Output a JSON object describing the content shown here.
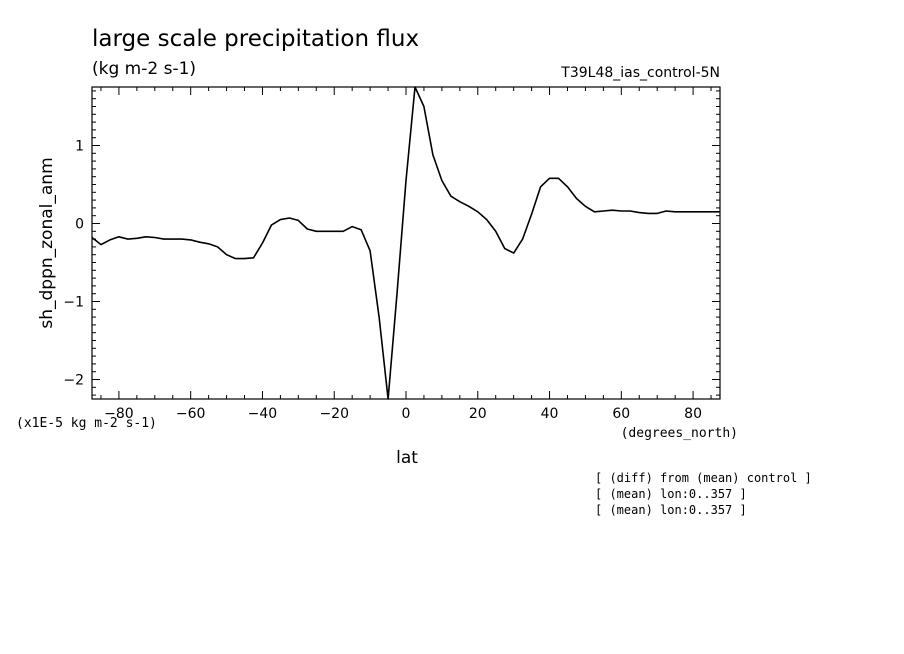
{
  "title": "large scale precipitation flux",
  "units": "(kg m-2 s-1)",
  "experiment": "T39L48_ias_control-5N",
  "notes": [
    "[ (diff) from (mean) control ]",
    "[ (mean) lon:0..357 ]",
    "[ (mean) lon:0..357 ]"
  ],
  "chart_data": {
    "type": "line",
    "title": "large scale precipitation flux",
    "xlabel": "lat",
    "xunits": "(degrees_north)",
    "ylabel": "sh_dppn_zonal_anm",
    "yscale_label": "(x1E-5 kg m-2 s-1)",
    "xlim": [
      -87.5,
      87.5
    ],
    "ylim": [
      -2.25,
      1.75
    ],
    "xticks": [
      -80,
      -60,
      -40,
      -20,
      0,
      20,
      40,
      60,
      80
    ],
    "yticks": [
      -2,
      -1,
      0,
      1
    ],
    "grid": false,
    "series": [
      {
        "x": [
          -87.5,
          -85,
          -82.5,
          -80,
          -77.5,
          -75,
          -72.5,
          -70,
          -67.5,
          -65,
          -62.5,
          -60,
          -57.5,
          -55,
          -52.5,
          -50,
          -47.5,
          -45,
          -42.5,
          -40,
          -37.5,
          -35,
          -32.5,
          -30,
          -27.5,
          -25,
          -22.5,
          -20,
          -17.5,
          -15,
          -12.5,
          -10,
          -7.5,
          -5,
          -2.5,
          0,
          2.5,
          5,
          7.5,
          10,
          12.5,
          15,
          17.5,
          20,
          22.5,
          25,
          27.5,
          30,
          32.5,
          35,
          37.5,
          40,
          42.5,
          45,
          47.5,
          50,
          52.5,
          55,
          57.5,
          60,
          62.5,
          65,
          67.5,
          70,
          72.5,
          75,
          77.5,
          80,
          82.5,
          85,
          87.5
        ],
        "y": [
          -0.18,
          -0.27,
          -0.21,
          -0.17,
          -0.2,
          -0.19,
          -0.17,
          -0.18,
          -0.2,
          -0.2,
          -0.2,
          -0.21,
          -0.24,
          -0.26,
          -0.3,
          -0.4,
          -0.45,
          -0.45,
          -0.44,
          -0.25,
          -0.02,
          0.05,
          0.07,
          0.04,
          -0.07,
          -0.1,
          -0.1,
          -0.1,
          -0.1,
          -0.04,
          -0.08,
          -0.35,
          -1.2,
          -2.25,
          -0.9,
          0.55,
          1.75,
          1.5,
          0.88,
          0.55,
          0.35,
          0.28,
          0.22,
          0.15,
          0.05,
          -0.1,
          -0.32,
          -0.38,
          -0.2,
          0.12,
          0.47,
          0.58,
          0.58,
          0.47,
          0.32,
          0.22,
          0.15,
          0.16,
          0.17,
          0.16,
          0.16,
          0.14,
          0.13,
          0.13,
          0.16,
          0.15,
          0.15,
          0.15,
          0.15,
          0.15,
          0.15
        ]
      }
    ]
  }
}
